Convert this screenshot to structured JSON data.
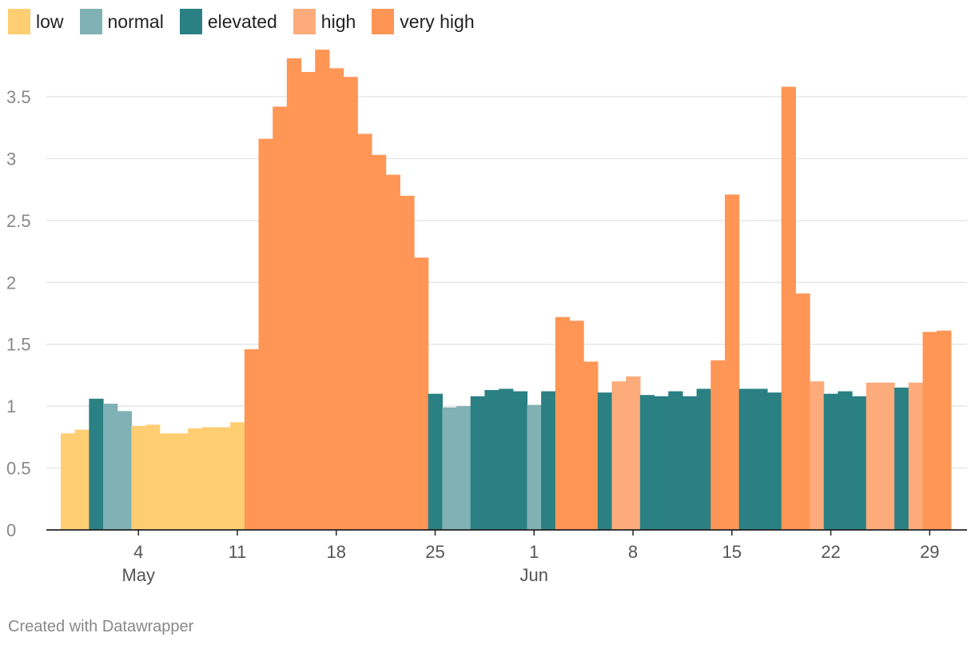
{
  "legend": [
    {
      "label": "low",
      "color": "#ffce73"
    },
    {
      "label": "normal",
      "color": "#80b1b4"
    },
    {
      "label": "elevated",
      "color": "#2a8083"
    },
    {
      "label": "high",
      "color": "#fdab7a"
    },
    {
      "label": "very high",
      "color": "#ff9656"
    }
  ],
  "footer": "Created with Datawrapper",
  "chart_data": {
    "type": "bar",
    "title": "",
    "xlabel": "",
    "ylabel": "",
    "ylim": [
      0,
      3.9
    ],
    "yticks": [
      "0",
      "0.5",
      "1",
      "1.5",
      "2",
      "2.5",
      "3",
      "3.5"
    ],
    "xticks": [
      {
        "day": "4",
        "month": "May",
        "date": "2020-05-04"
      },
      {
        "day": "11",
        "month": "",
        "date": "2020-05-11"
      },
      {
        "day": "18",
        "month": "",
        "date": "2020-05-18"
      },
      {
        "day": "25",
        "month": "",
        "date": "2020-05-25"
      },
      {
        "day": "1",
        "month": "Jun",
        "date": "2020-06-01"
      },
      {
        "day": "8",
        "month": "",
        "date": "2020-06-08"
      },
      {
        "day": "15",
        "month": "",
        "date": "2020-06-15"
      },
      {
        "day": "22",
        "month": "",
        "date": "2020-06-22"
      },
      {
        "day": "29",
        "month": "",
        "date": "2020-06-29"
      }
    ],
    "grid": true,
    "legend_position": "top-left",
    "dates": [
      "2020-04-29",
      "2020-04-30",
      "2020-05-01",
      "2020-05-02",
      "2020-05-03",
      "2020-05-04",
      "2020-05-05",
      "2020-05-06",
      "2020-05-07",
      "2020-05-08",
      "2020-05-09",
      "2020-05-10",
      "2020-05-11",
      "2020-05-12",
      "2020-05-13",
      "2020-05-14",
      "2020-05-15",
      "2020-05-16",
      "2020-05-17",
      "2020-05-18",
      "2020-05-19",
      "2020-05-20",
      "2020-05-21",
      "2020-05-22",
      "2020-05-23",
      "2020-05-24",
      "2020-05-25",
      "2020-05-26",
      "2020-05-27",
      "2020-05-28",
      "2020-05-29",
      "2020-05-30",
      "2020-05-31",
      "2020-06-01",
      "2020-06-02",
      "2020-06-03",
      "2020-06-04",
      "2020-06-05",
      "2020-06-06",
      "2020-06-07",
      "2020-06-08",
      "2020-06-09",
      "2020-06-10",
      "2020-06-11",
      "2020-06-12",
      "2020-06-13",
      "2020-06-14",
      "2020-06-15",
      "2020-06-16",
      "2020-06-17",
      "2020-06-18",
      "2020-06-19",
      "2020-06-20",
      "2020-06-21",
      "2020-06-22",
      "2020-06-23",
      "2020-06-24",
      "2020-06-25",
      "2020-06-26",
      "2020-06-27",
      "2020-06-28",
      "2020-06-29",
      "2020-06-30"
    ],
    "values": [
      0.78,
      0.81,
      1.06,
      1.02,
      0.96,
      0.84,
      0.85,
      0.78,
      0.78,
      0.82,
      0.83,
      0.83,
      0.87,
      1.46,
      3.16,
      3.42,
      3.81,
      3.7,
      3.88,
      3.73,
      3.66,
      3.2,
      3.03,
      2.87,
      2.7,
      2.2,
      1.1,
      0.99,
      1.0,
      1.08,
      1.13,
      1.14,
      1.12,
      1.01,
      1.12,
      1.72,
      1.69,
      1.36,
      1.11,
      1.2,
      1.24,
      1.09,
      1.08,
      1.12,
      1.08,
      1.14,
      1.37,
      2.71,
      1.14,
      1.14,
      1.11,
      3.58,
      1.91,
      1.2,
      1.1,
      1.12,
      1.08,
      1.19,
      1.19,
      1.15,
      1.19,
      1.6,
      1.61
    ],
    "categories": [
      "low",
      "low",
      "elevated",
      "normal",
      "normal",
      "low",
      "low",
      "low",
      "low",
      "low",
      "low",
      "low",
      "low",
      "very high",
      "very high",
      "very high",
      "very high",
      "very high",
      "very high",
      "very high",
      "very high",
      "very high",
      "very high",
      "very high",
      "very high",
      "very high",
      "elevated",
      "normal",
      "normal",
      "elevated",
      "elevated",
      "elevated",
      "elevated",
      "normal",
      "elevated",
      "very high",
      "very high",
      "very high",
      "elevated",
      "high",
      "high",
      "elevated",
      "elevated",
      "elevated",
      "elevated",
      "elevated",
      "very high",
      "very high",
      "elevated",
      "elevated",
      "elevated",
      "very high",
      "very high",
      "high",
      "elevated",
      "elevated",
      "elevated",
      "high",
      "high",
      "elevated",
      "high",
      "very high",
      "very high"
    ]
  }
}
